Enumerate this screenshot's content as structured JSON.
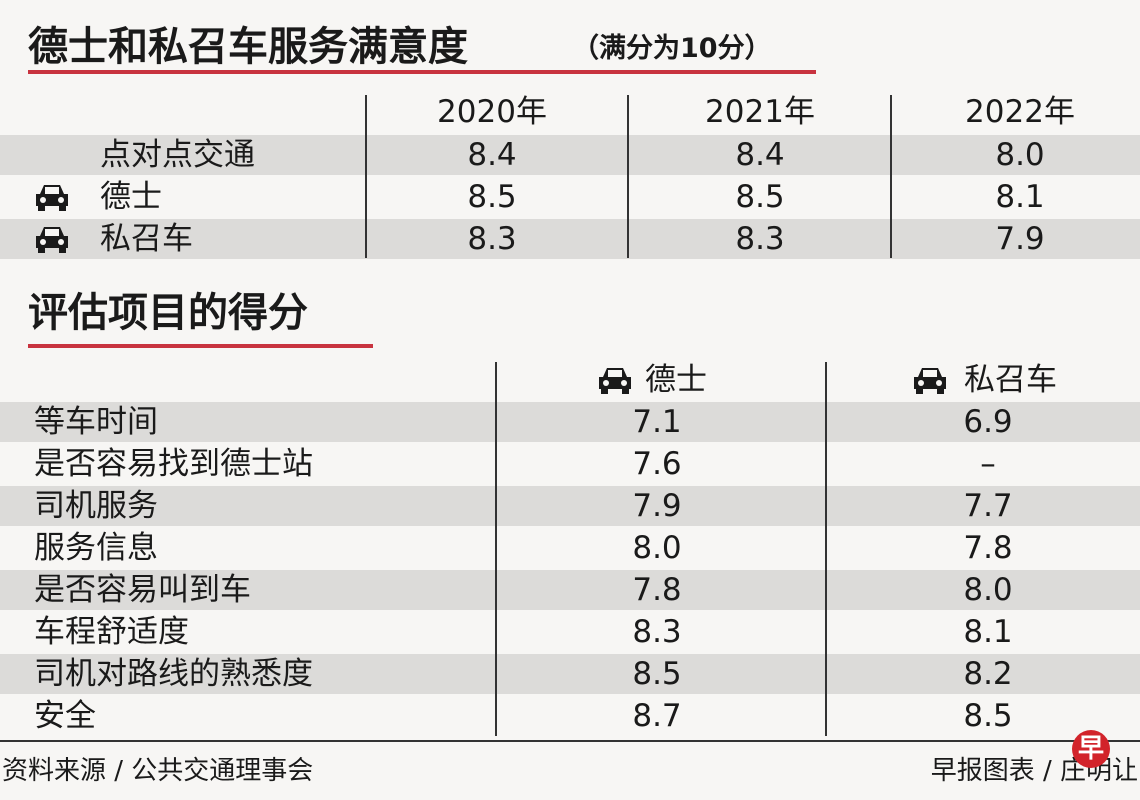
{
  "title": "德士和私召车服务满意度",
  "subtitle": "（满分为10分）",
  "table1": {
    "headers": [
      "2020年",
      "2021年",
      "2022年"
    ],
    "rows": [
      [
        "点对点交通",
        "8.4",
        "8.4",
        "8.0"
      ],
      [
        "德士",
        "8.5",
        "8.5",
        "8.1"
      ],
      [
        "私召车",
        "8.3",
        "8.3",
        "7.9"
      ]
    ]
  },
  "section2_title": "评估项目的得分",
  "table2": {
    "headers": [
      "德士",
      "私召车"
    ],
    "rows": [
      [
        "等车时间",
        "7.1",
        "6.9"
      ],
      [
        "是否容易找到德士站",
        "7.6",
        "–"
      ],
      [
        "司机服务",
        "7.9",
        "7.7"
      ],
      [
        "服务信息",
        "8.0",
        "7.8"
      ],
      [
        "是否容易叫到车",
        "7.8",
        "8.0"
      ],
      [
        "车程舒适度",
        "8.3",
        "8.1"
      ],
      [
        "司机对路线的熟悉度",
        "8.5",
        "8.2"
      ],
      [
        "安全",
        "8.7",
        "8.5"
      ]
    ]
  },
  "source": "资料来源 / 公共交通理事会",
  "credit": "早报图表 / 庄明让",
  "logo": "早"
}
